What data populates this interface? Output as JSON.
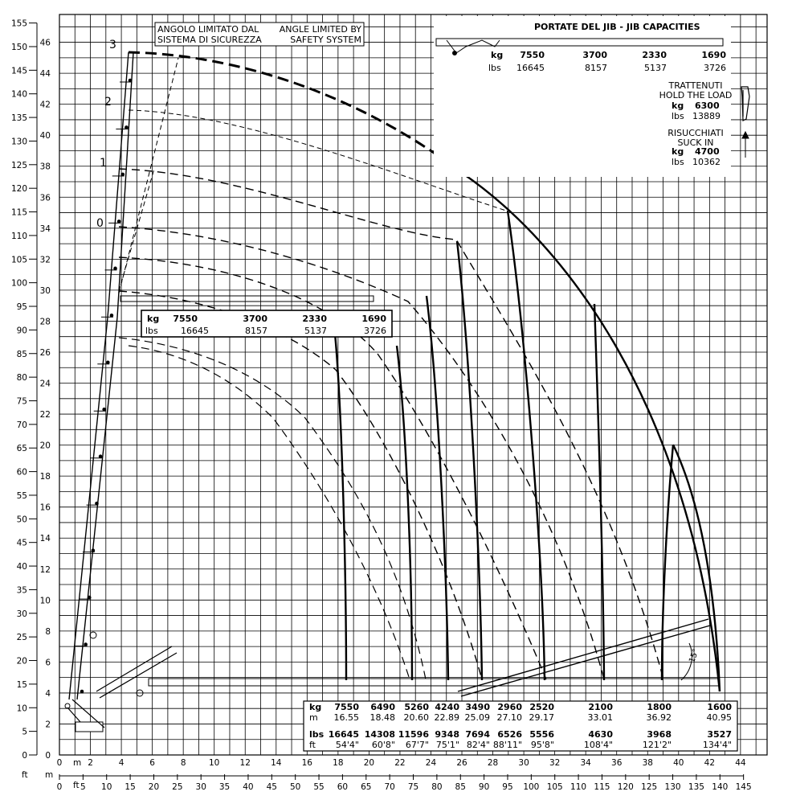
{
  "axes": {
    "y_m_ticks": [
      "0",
      "2",
      "4",
      "6",
      "8",
      "10",
      "12",
      "14",
      "16",
      "18",
      "20",
      "22",
      "24",
      "26",
      "28",
      "30",
      "32",
      "34",
      "36",
      "38",
      "40",
      "42",
      "44",
      "46"
    ],
    "y_ft_ticks": [
      "0",
      "5",
      "10",
      "15",
      "20",
      "25",
      "30",
      "35",
      "40",
      "45",
      "50",
      "55",
      "60",
      "65",
      "70",
      "75",
      "80",
      "85",
      "90",
      "95",
      "100",
      "105",
      "110",
      "115",
      "120",
      "125",
      "130",
      "135",
      "140",
      "145",
      "150",
      "155"
    ],
    "x_m_ticks": [
      "0",
      "2",
      "4",
      "6",
      "8",
      "10",
      "12",
      "14",
      "16",
      "18",
      "20",
      "22",
      "24",
      "26",
      "28",
      "30",
      "32",
      "34",
      "36",
      "38",
      "40",
      "42",
      "44"
    ],
    "x_ft_ticks": [
      "0",
      "5",
      "10",
      "15",
      "20",
      "25",
      "30",
      "35",
      "40",
      "45",
      "50",
      "55",
      "60",
      "65",
      "70",
      "75",
      "80",
      "85",
      "90",
      "95",
      "100",
      "105",
      "110",
      "115",
      "120",
      "125",
      "130",
      "135",
      "140",
      "145"
    ],
    "x_m_unit": "m",
    "x_ft_unit": "ft",
    "y_ft_unit": "ft",
    "y_m_unit": "m"
  },
  "angle_note": {
    "it": "ANGOLO LIMITATO DAL SISTEMA DI SICUREZZA",
    "it_line1": "ANGOLO LIMITATO DAL",
    "it_line2": "SISTEMA DI SICUREZZA",
    "en_line1": "ANGLE LIMITED BY",
    "en_line2": "SAFETY SYSTEM"
  },
  "jib": {
    "title": "PORTATE DEL JIB  -  JIB CAPACITIES",
    "kg_label": "kg",
    "lbs_label": "lbs",
    "kg": [
      "7550",
      "3700",
      "2330",
      "1690"
    ],
    "lbs": [
      "16645",
      "8157",
      "5137",
      "3726"
    ],
    "hold_title_1": "TRATTENUTI",
    "hold_title_2": "HOLD THE LOAD",
    "hold_kg": "6300",
    "hold_lbs": "13889",
    "suck_title_1": "RISUCCHIATI",
    "suck_title_2": "SUCK IN",
    "suck_kg": "4700",
    "suck_lbs": "10362"
  },
  "jib_positions": [
    "0",
    "1",
    "2",
    "3"
  ],
  "angle_marker": "15°",
  "capacities": {
    "kg_label": "kg",
    "m_label": "m",
    "lbs_label": "lbs",
    "ft_label": "ft",
    "kg": [
      "7550",
      "6490",
      "5260",
      "4240",
      "3490",
      "2960",
      "2520",
      "2100",
      "1800",
      "1600"
    ],
    "m": [
      "16.55",
      "18.48",
      "20.60",
      "22.89",
      "25.09",
      "27.10",
      "29.17",
      "33.01",
      "36.92",
      "40.95"
    ],
    "lbs": [
      "16645",
      "14308",
      "11596",
      "9348",
      "7694",
      "6526",
      "5556",
      "4630",
      "3968",
      "3527"
    ],
    "ft": [
      "54'4\"",
      "60'8\"",
      "67'7\"",
      "75'1\"",
      "82'4\"",
      "88'11\"",
      "95'8\"",
      "108'4\"",
      "121'2\"",
      "134'4\""
    ]
  },
  "colors": {
    "line": "#000000",
    "background": "#ffffff",
    "grid": "#000000"
  }
}
